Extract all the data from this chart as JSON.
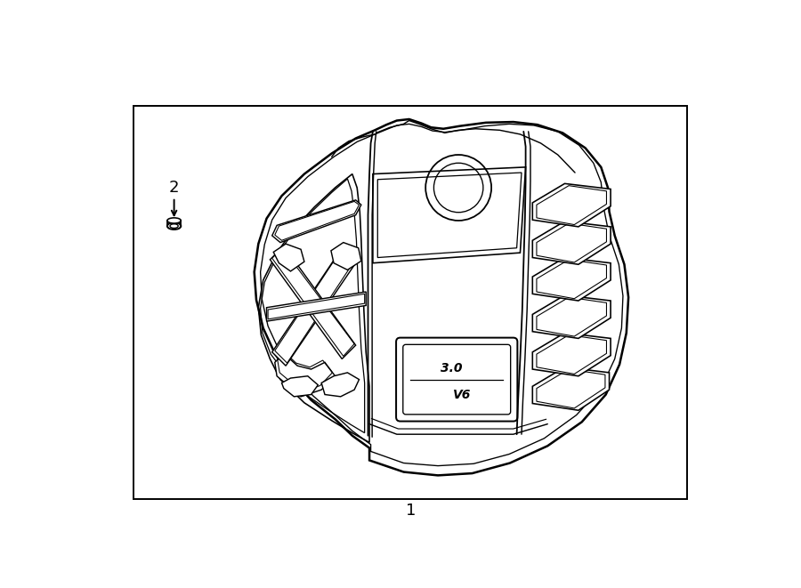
{
  "bg": "#ffffff",
  "lc": "#000000",
  "lw": 1.3,
  "label_1": "1",
  "label_2": "2",
  "label_fs": 13
}
